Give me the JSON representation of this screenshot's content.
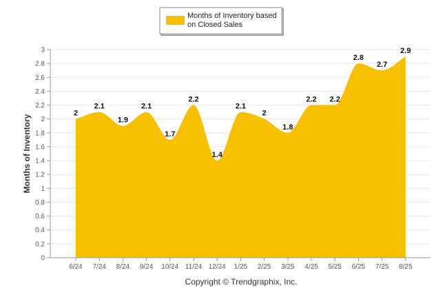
{
  "chart_data": {
    "type": "area",
    "categories": [
      "6/24",
      "7/24",
      "8/24",
      "9/24",
      "10/24",
      "11/24",
      "12/24",
      "1/25",
      "2/25",
      "3/25",
      "4/25",
      "5/25",
      "6/25",
      "7/25",
      "8/25"
    ],
    "series": [
      {
        "name_lines": [
          "Months of Inventory based",
          "on Closed Sales"
        ],
        "values": [
          2,
          2.1,
          1.9,
          2.1,
          1.7,
          2.2,
          1.4,
          2.1,
          2,
          1.8,
          2.2,
          2.2,
          2.8,
          2.7,
          2.9
        ],
        "color": "#F7C000"
      }
    ],
    "ylabel": "Months of Inventory",
    "ylim": [
      0,
      3
    ],
    "yticks": [
      "0",
      "0.2",
      "0.4",
      "0.6",
      "0.8",
      "1",
      "1.2",
      "1.4",
      "1.6",
      "1.8",
      "2",
      "2.2",
      "2.4",
      "2.6",
      "2.8",
      "3"
    ],
    "grid": true,
    "legend_position": "top-center",
    "footer": "Copyright © Trendgraphix, Inc."
  }
}
